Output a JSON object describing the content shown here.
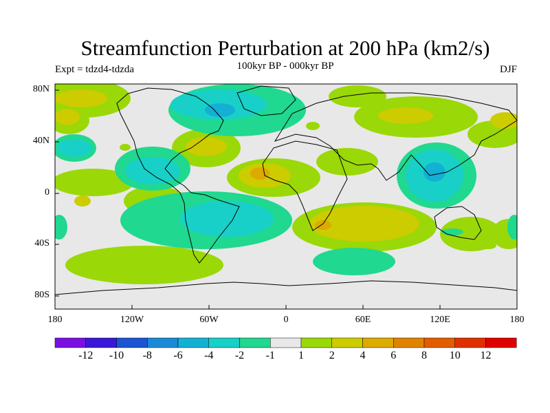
{
  "title": "Streamfunction Perturbation at 200 hPa (km2/s)",
  "subtitle": "100kyr BP - 000kyr BP",
  "experiment": "Expt = tdzd4-tdzda",
  "season": "DJF",
  "map": {
    "projection": "cylindrical-equidistant",
    "background_color": "#e8e8e8",
    "lat_labels": [
      "80N",
      "40N",
      "0",
      "40S",
      "80S"
    ],
    "lon_labels": [
      "180",
      "120W",
      "60W",
      "0",
      "60E",
      "120E",
      "180"
    ]
  },
  "colorbar": {
    "labels": [
      "-12",
      "-10",
      "-8",
      "-6",
      "-4",
      "-2",
      "-1",
      "1",
      "2",
      "4",
      "6",
      "8",
      "10",
      "12"
    ],
    "colors": [
      "#7a10e0",
      "#3a18d8",
      "#1c55d2",
      "#1a8ad6",
      "#14b0d4",
      "#18d0c8",
      "#20d890",
      "#e8e8e8",
      "#9ad808",
      "#cccc00",
      "#ddaa00",
      "#e08400",
      "#e25c00",
      "#e03000",
      "#e00000"
    ]
  }
}
